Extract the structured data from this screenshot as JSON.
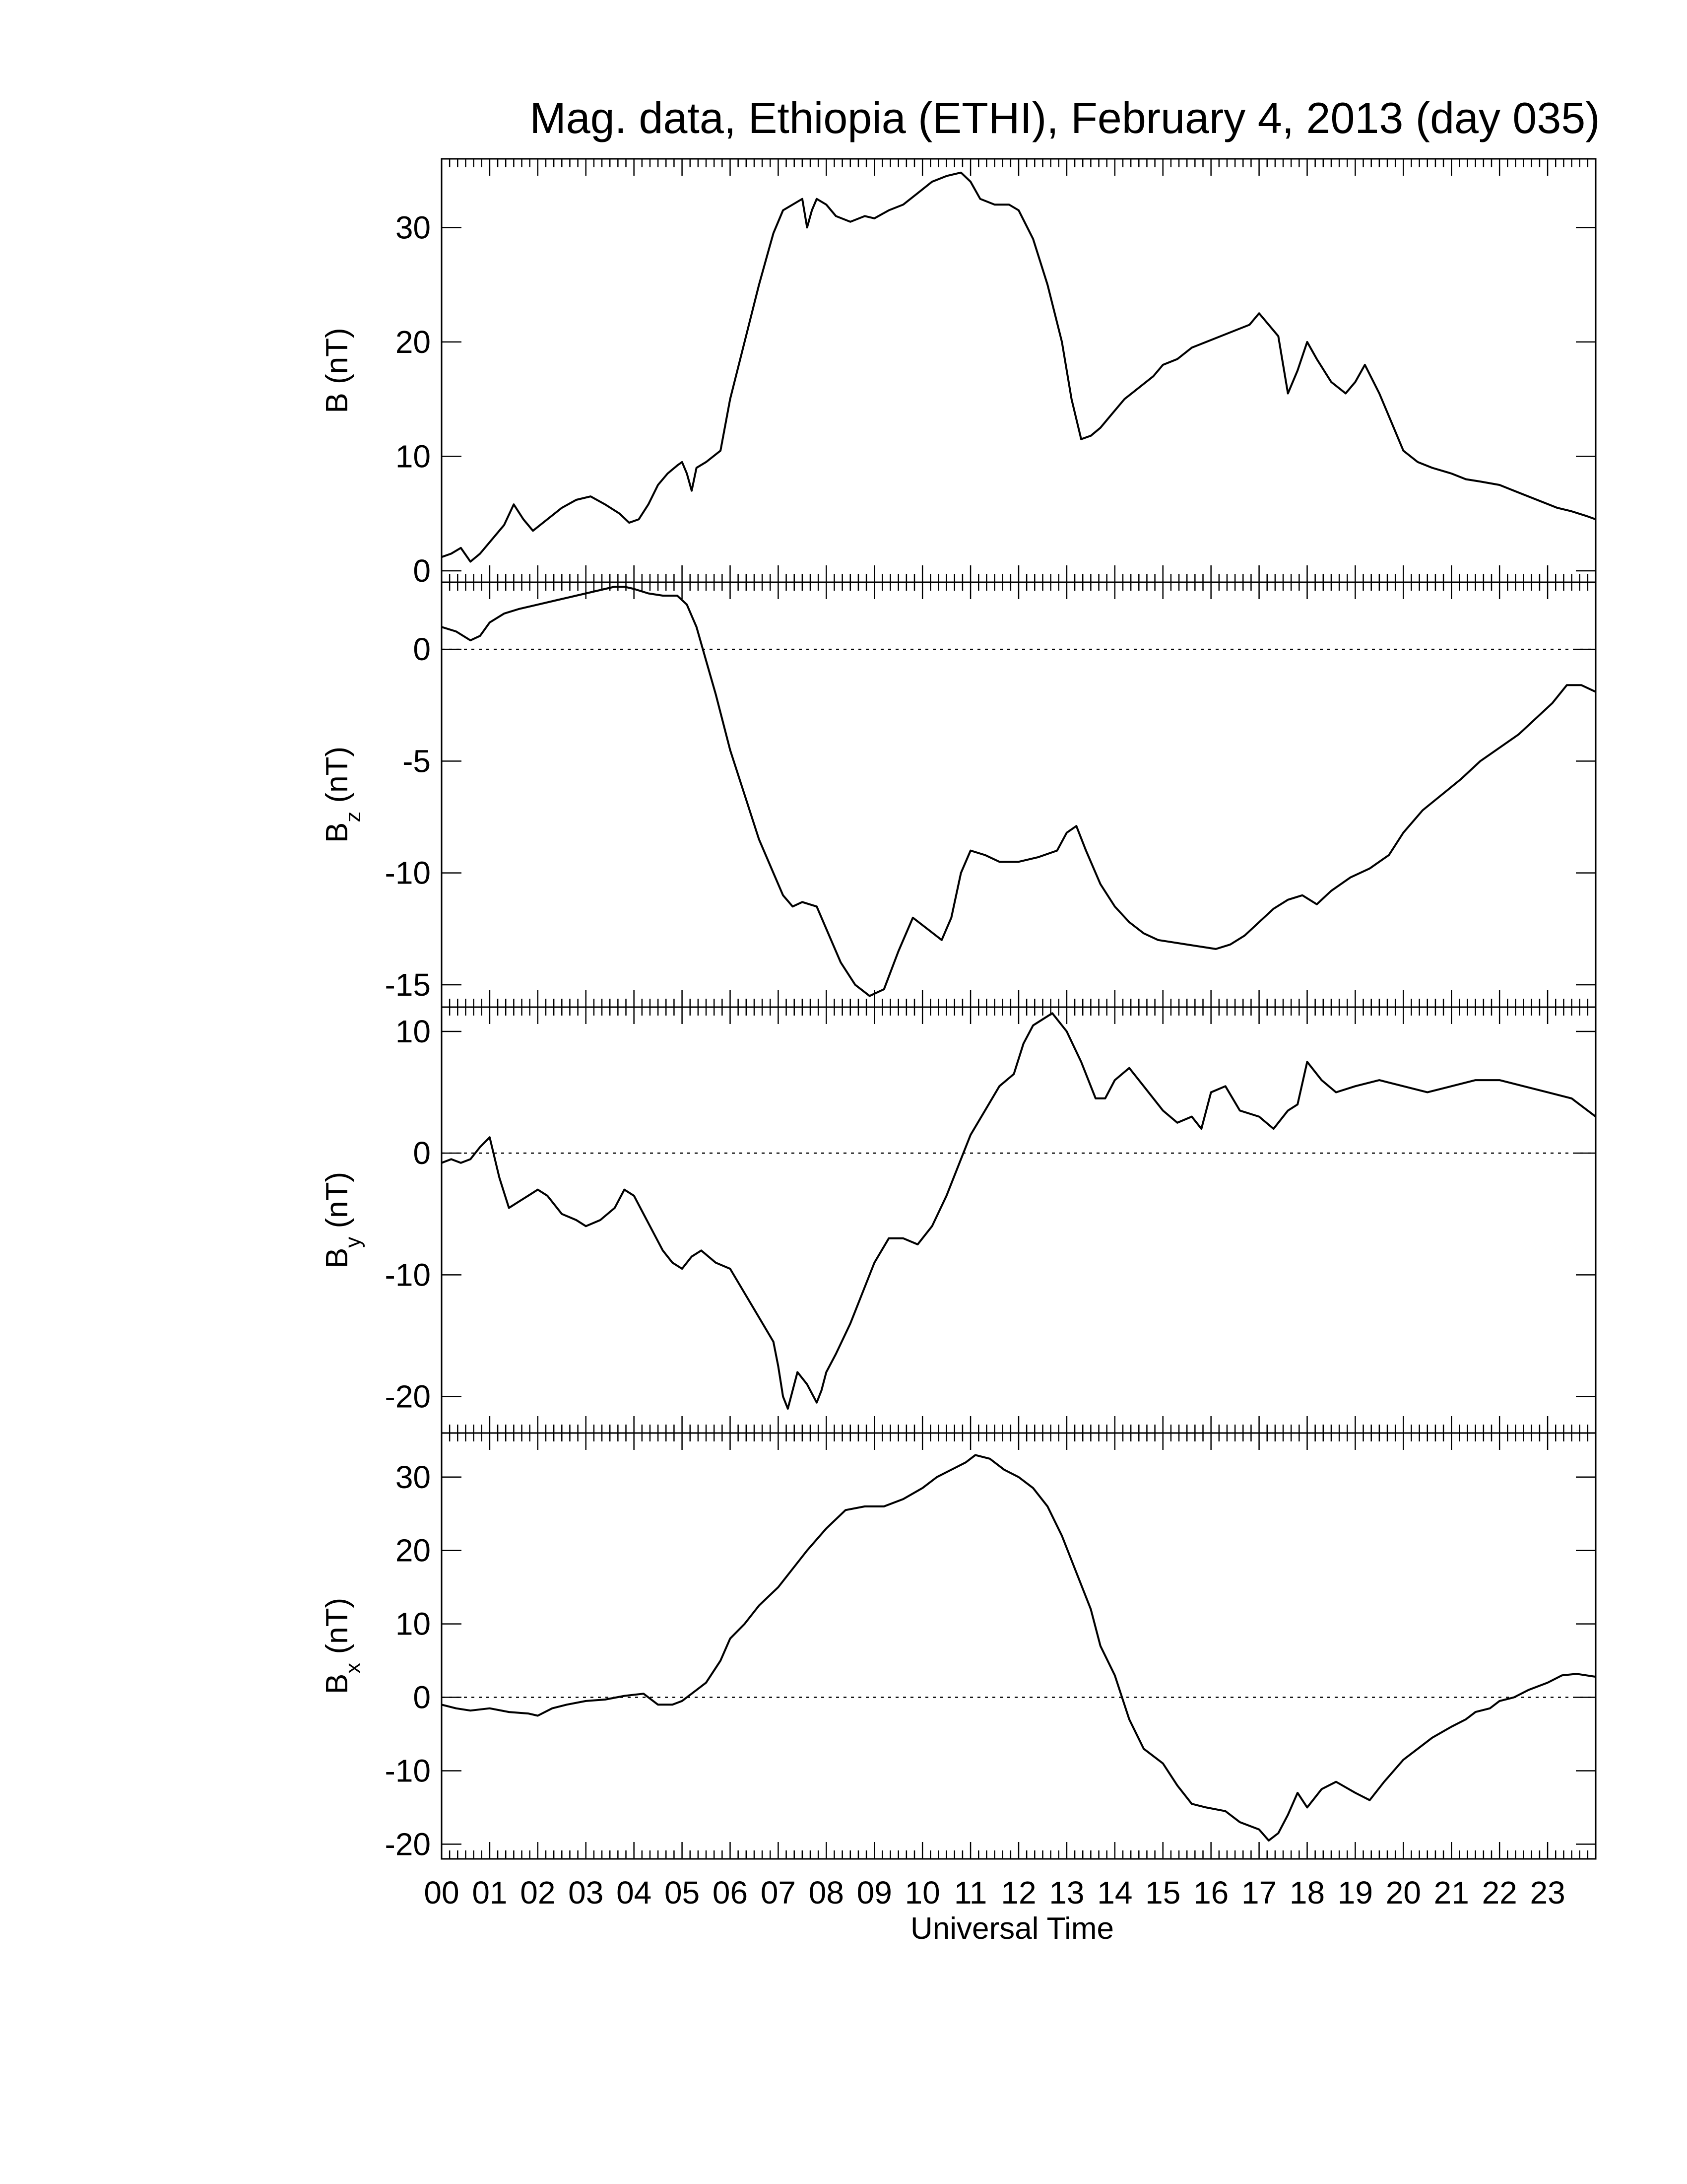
{
  "chart_data": {
    "type": "line",
    "title": "Mag. data, Ethiopia (ETHI), February 4, 2013 (day 035)",
    "xlabel": "Universal Time",
    "x_ticks": [
      "00",
      "01",
      "02",
      "03",
      "04",
      "05",
      "06",
      "07",
      "08",
      "09",
      "10",
      "11",
      "12",
      "13",
      "14",
      "15",
      "16",
      "17",
      "18",
      "19",
      "20",
      "21",
      "22",
      "23"
    ],
    "xlim": [
      0,
      24
    ],
    "line_color": "#000000",
    "panels": [
      {
        "id": "B",
        "ylabel": "B (nT)",
        "ylim": [
          -1,
          36
        ],
        "yticks": [
          0,
          10,
          20,
          30
        ],
        "zero_line": false,
        "x": [
          0.0,
          0.2,
          0.4,
          0.6,
          0.8,
          1.0,
          1.3,
          1.5,
          1.7,
          1.9,
          2.2,
          2.5,
          2.8,
          3.1,
          3.4,
          3.7,
          3.9,
          4.1,
          4.3,
          4.5,
          4.7,
          4.9,
          5.0,
          5.1,
          5.2,
          5.3,
          5.5,
          5.8,
          6.0,
          6.3,
          6.6,
          6.8,
          6.9,
          7.0,
          7.1,
          7.3,
          7.5,
          7.6,
          7.7,
          7.8,
          8.0,
          8.2,
          8.5,
          8.8,
          9.0,
          9.3,
          9.6,
          9.9,
          10.2,
          10.5,
          10.8,
          11.0,
          11.2,
          11.5,
          11.8,
          12.0,
          12.3,
          12.6,
          12.9,
          13.1,
          13.3,
          13.5,
          13.7,
          13.9,
          14.2,
          14.5,
          14.8,
          15.0,
          15.3,
          15.6,
          15.9,
          16.2,
          16.5,
          16.8,
          17.0,
          17.2,
          17.4,
          17.5,
          17.6,
          17.8,
          18.0,
          18.2,
          18.5,
          18.8,
          19.0,
          19.2,
          19.5,
          19.7,
          20.0,
          20.3,
          20.6,
          21.0,
          21.3,
          21.6,
          22.0,
          22.3,
          22.6,
          22.9,
          23.2,
          23.5,
          23.8,
          24.0
        ],
        "y": [
          1.2,
          1.5,
          2.0,
          0.8,
          1.5,
          2.5,
          4.0,
          5.8,
          4.5,
          3.5,
          4.5,
          5.5,
          6.2,
          6.5,
          5.8,
          5.0,
          4.2,
          4.5,
          5.8,
          7.5,
          8.5,
          9.2,
          9.5,
          8.5,
          7.0,
          9.0,
          9.5,
          10.5,
          15.0,
          20.0,
          25.0,
          28.0,
          29.5,
          30.5,
          31.5,
          32.0,
          32.5,
          30.0,
          31.5,
          32.5,
          32.0,
          31.0,
          30.5,
          31.0,
          30.8,
          31.5,
          32.0,
          33.0,
          34.0,
          34.5,
          34.8,
          34.0,
          32.5,
          32.0,
          32.0,
          31.5,
          29.0,
          25.0,
          20.0,
          15.0,
          11.5,
          11.8,
          12.5,
          13.5,
          15.0,
          16.0,
          17.0,
          18.0,
          18.5,
          19.5,
          20.0,
          20.5,
          21.0,
          21.5,
          22.5,
          21.5,
          20.5,
          18.0,
          15.5,
          17.5,
          20.0,
          18.5,
          16.5,
          15.5,
          16.5,
          18.0,
          15.5,
          13.5,
          10.5,
          9.5,
          9.0,
          8.5,
          8.0,
          7.8,
          7.5,
          7.0,
          6.5,
          6.0,
          5.5,
          5.2,
          4.8,
          4.5
        ]
      },
      {
        "id": "Bz",
        "ylabel": "B",
        "ylabel_sub": "z",
        "ylabel_unit": "(nT)",
        "ylim": [
          -16,
          3
        ],
        "yticks": [
          0,
          -5,
          -10,
          -15
        ],
        "zero_line": true,
        "x": [
          0.0,
          0.3,
          0.6,
          0.8,
          1.0,
          1.3,
          1.6,
          2.0,
          2.4,
          2.8,
          3.2,
          3.6,
          3.8,
          4.0,
          4.3,
          4.6,
          4.9,
          5.1,
          5.3,
          5.5,
          5.7,
          6.0,
          6.3,
          6.6,
          6.9,
          7.1,
          7.3,
          7.5,
          7.8,
          8.0,
          8.3,
          8.6,
          8.9,
          9.2,
          9.5,
          9.8,
          10.1,
          10.4,
          10.6,
          10.8,
          11.0,
          11.3,
          11.6,
          12.0,
          12.4,
          12.8,
          13.0,
          13.2,
          13.4,
          13.7,
          14.0,
          14.3,
          14.6,
          14.9,
          15.2,
          15.5,
          15.8,
          16.1,
          16.4,
          16.7,
          17.0,
          17.3,
          17.6,
          17.9,
          18.2,
          18.5,
          18.9,
          19.3,
          19.7,
          20.0,
          20.4,
          20.8,
          21.2,
          21.6,
          22.0,
          22.4,
          22.8,
          23.1,
          23.4,
          23.7,
          24.0
        ],
        "y": [
          1.0,
          0.8,
          0.4,
          0.6,
          1.2,
          1.6,
          1.8,
          2.0,
          2.2,
          2.4,
          2.6,
          2.8,
          2.8,
          2.7,
          2.5,
          2.4,
          2.4,
          2.0,
          1.0,
          -0.5,
          -2.0,
          -4.5,
          -6.5,
          -8.5,
          -10.0,
          -11.0,
          -11.5,
          -11.3,
          -11.5,
          -12.5,
          -14.0,
          -15.0,
          -15.5,
          -15.2,
          -13.5,
          -12.0,
          -12.5,
          -13.0,
          -12.0,
          -10.0,
          -9.0,
          -9.2,
          -9.5,
          -9.5,
          -9.3,
          -9.0,
          -8.2,
          -7.9,
          -9.0,
          -10.5,
          -11.5,
          -12.2,
          -12.7,
          -13.0,
          -13.1,
          -13.2,
          -13.3,
          -13.4,
          -13.2,
          -12.8,
          -12.2,
          -11.6,
          -11.2,
          -11.0,
          -11.4,
          -10.8,
          -10.2,
          -9.8,
          -9.2,
          -8.2,
          -7.2,
          -6.5,
          -5.8,
          -5.0,
          -4.4,
          -3.8,
          -3.0,
          -2.4,
          -1.6,
          -1.6,
          -1.9
        ]
      },
      {
        "id": "By",
        "ylabel": "B",
        "ylabel_sub": "y",
        "ylabel_unit": "(nT)",
        "ylim": [
          -23,
          12
        ],
        "yticks": [
          10,
          0,
          -10,
          -20
        ],
        "zero_line": true,
        "x": [
          0.0,
          0.2,
          0.4,
          0.6,
          0.8,
          1.0,
          1.2,
          1.4,
          1.6,
          1.8,
          2.0,
          2.2,
          2.5,
          2.8,
          3.0,
          3.3,
          3.6,
          3.8,
          4.0,
          4.2,
          4.4,
          4.6,
          4.8,
          5.0,
          5.2,
          5.4,
          5.7,
          6.0,
          6.3,
          6.6,
          6.9,
          7.0,
          7.1,
          7.2,
          7.4,
          7.6,
          7.8,
          7.9,
          8.0,
          8.2,
          8.5,
          8.8,
          9.0,
          9.3,
          9.6,
          9.9,
          10.2,
          10.5,
          10.8,
          11.0,
          11.3,
          11.6,
          11.9,
          12.1,
          12.3,
          12.5,
          12.7,
          13.0,
          13.3,
          13.6,
          13.8,
          14.0,
          14.3,
          14.6,
          15.0,
          15.3,
          15.6,
          15.8,
          16.0,
          16.3,
          16.6,
          17.0,
          17.3,
          17.6,
          17.8,
          18.0,
          18.3,
          18.6,
          19.0,
          19.5,
          20.0,
          20.5,
          21.0,
          21.5,
          22.0,
          22.5,
          23.0,
          23.5,
          24.0
        ],
        "y": [
          -0.8,
          -0.5,
          -0.8,
          -0.5,
          0.5,
          1.3,
          -2.0,
          -4.5,
          -4.0,
          -3.5,
          -3.0,
          -3.5,
          -5.0,
          -5.5,
          -6.0,
          -5.5,
          -4.5,
          -3.0,
          -3.5,
          -5.0,
          -6.5,
          -8.0,
          -9.0,
          -9.5,
          -8.5,
          -8.0,
          -9.0,
          -9.5,
          -11.5,
          -13.5,
          -15.5,
          -17.5,
          -20.0,
          -21.0,
          -18.0,
          -19.0,
          -20.5,
          -19.5,
          -18.0,
          -16.5,
          -14.0,
          -11.0,
          -9.0,
          -7.0,
          -7.0,
          -7.5,
          -6.0,
          -3.5,
          -0.5,
          1.5,
          3.5,
          5.5,
          6.5,
          9.0,
          10.5,
          11.0,
          11.5,
          10.0,
          7.5,
          4.5,
          4.5,
          6.0,
          7.0,
          5.5,
          3.5,
          2.5,
          3.0,
          2.0,
          5.0,
          5.5,
          3.5,
          3.0,
          2.0,
          3.5,
          4.0,
          7.5,
          6.0,
          5.0,
          5.5,
          6.0,
          5.5,
          5.0,
          5.5,
          6.0,
          6.0,
          5.5,
          5.0,
          4.5,
          3.0
        ]
      },
      {
        "id": "Bx",
        "ylabel": "B",
        "ylabel_sub": "x",
        "ylabel_unit": "(nT)",
        "ylim": [
          -22,
          36
        ],
        "yticks": [
          30,
          20,
          10,
          0,
          -10,
          -20
        ],
        "zero_line": true,
        "x": [
          0.0,
          0.3,
          0.6,
          1.0,
          1.4,
          1.8,
          2.0,
          2.3,
          2.6,
          3.0,
          3.4,
          3.8,
          4.2,
          4.5,
          4.8,
          5.0,
          5.3,
          5.5,
          5.8,
          6.0,
          6.3,
          6.6,
          7.0,
          7.3,
          7.6,
          8.0,
          8.4,
          8.8,
          9.2,
          9.6,
          10.0,
          10.3,
          10.6,
          10.9,
          11.1,
          11.4,
          11.7,
          12.0,
          12.3,
          12.6,
          12.9,
          13.2,
          13.5,
          13.7,
          14.0,
          14.3,
          14.6,
          15.0,
          15.3,
          15.6,
          15.9,
          16.3,
          16.6,
          17.0,
          17.2,
          17.4,
          17.6,
          17.8,
          18.0,
          18.3,
          18.6,
          19.0,
          19.3,
          19.6,
          20.0,
          20.3,
          20.6,
          21.0,
          21.3,
          21.5,
          21.8,
          22.0,
          22.3,
          22.6,
          23.0,
          23.3,
          23.6,
          24.0
        ],
        "y": [
          -1.0,
          -1.5,
          -1.8,
          -1.5,
          -2.0,
          -2.2,
          -2.5,
          -1.5,
          -1.0,
          -0.5,
          -0.3,
          0.2,
          0.5,
          -1.0,
          -1.0,
          -0.5,
          1.0,
          2.0,
          5.0,
          8.0,
          10.0,
          12.5,
          15.0,
          17.5,
          20.0,
          23.0,
          25.5,
          26.0,
          26.0,
          27.0,
          28.5,
          30.0,
          31.0,
          32.0,
          33.0,
          32.5,
          31.0,
          30.0,
          28.5,
          26.0,
          22.0,
          17.0,
          12.0,
          7.0,
          3.0,
          -3.0,
          -7.0,
          -9.0,
          -12.0,
          -14.5,
          -15.0,
          -15.5,
          -17.0,
          -18.0,
          -19.5,
          -18.5,
          -16.0,
          -13.0,
          -15.0,
          -12.5,
          -11.5,
          -13.0,
          -14.0,
          -11.5,
          -8.5,
          -7.0,
          -5.5,
          -4.0,
          -3.0,
          -2.0,
          -1.5,
          -0.5,
          0.0,
          1.0,
          2.0,
          3.0,
          3.2,
          2.8
        ]
      }
    ]
  }
}
